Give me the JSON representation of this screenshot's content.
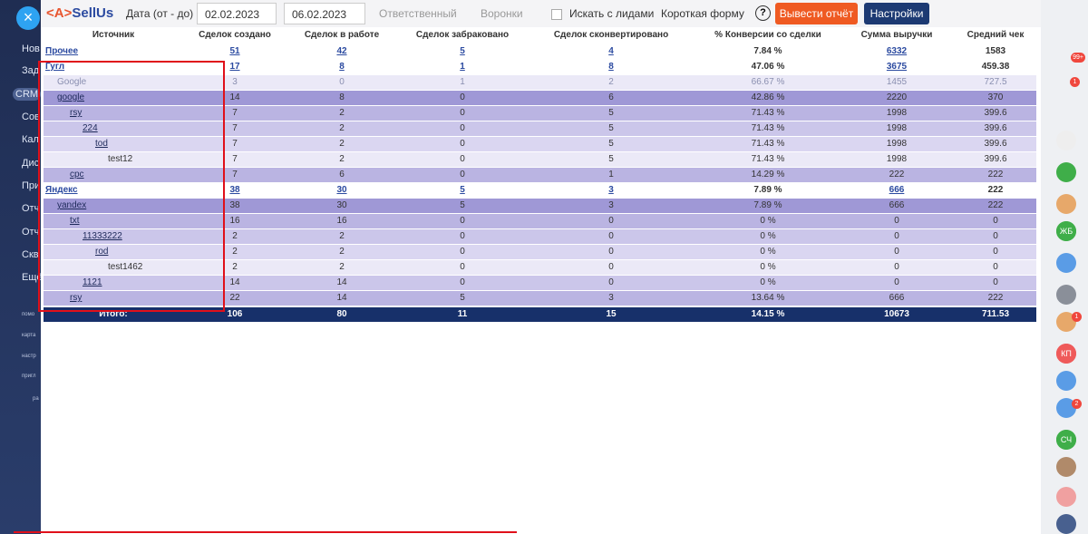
{
  "sidebar": {
    "close": "×",
    "items": [
      "Нов",
      "Зад",
      "CRM",
      "Сов",
      "Кал",
      "Дис",
      "При",
      "Отч",
      "Отч",
      "Скв",
      "Ещё"
    ],
    "small_items": [
      "помо",
      "карта",
      "настр",
      "пригл",
      "ра"
    ]
  },
  "toolbar": {
    "logo_mark": "<A>",
    "logo_text": "SellUs",
    "date_label": "Дата (от - до)",
    "date_from": "02.02.2023",
    "date_to": "06.02.2023",
    "responsible": "Ответственный",
    "funnels": "Воронки",
    "search_leads": "Искать с лидами",
    "form": "Короткая форму",
    "help": "?",
    "report_button": "Вывести отчёт",
    "settings_button": "Настройки"
  },
  "right_panel": {
    "badges": [
      "99+",
      "1",
      "1",
      "2"
    ],
    "icons": [
      "ЖБ",
      "КП",
      "СЧ"
    ]
  },
  "table": {
    "columns": [
      "Источник",
      "Сделок создано",
      "Сделок в работе",
      "Сделок забраковано",
      "Сделок сконвертировано",
      "% Конверсии со сделки",
      "Сумма выручки",
      "Средний чек"
    ],
    "rows": [
      [
        "Прочее",
        "51",
        "42",
        "5",
        "4",
        "7.84 %",
        "6332",
        "1583"
      ],
      [
        "Гугл",
        "17",
        "8",
        "1",
        "8",
        "47.06 %",
        "3675",
        "459.38"
      ],
      [
        "Google",
        "3",
        "0",
        "1",
        "2",
        "66.67 %",
        "1455",
        "727.5"
      ],
      [
        "google",
        "14",
        "8",
        "0",
        "6",
        "42.86 %",
        "2220",
        "370"
      ],
      [
        "rsy",
        "7",
        "2",
        "0",
        "5",
        "71.43 %",
        "1998",
        "399.6"
      ],
      [
        "224",
        "7",
        "2",
        "0",
        "5",
        "71.43 %",
        "1998",
        "399.6"
      ],
      [
        "tod",
        "7",
        "2",
        "0",
        "5",
        "71.43 %",
        "1998",
        "399.6"
      ],
      [
        "test12",
        "7",
        "2",
        "0",
        "5",
        "71.43 %",
        "1998",
        "399.6"
      ],
      [
        "cpc",
        "7",
        "6",
        "0",
        "1",
        "14.29 %",
        "222",
        "222"
      ],
      [
        "Яндекс",
        "38",
        "30",
        "5",
        "3",
        "7.89 %",
        "666",
        "222"
      ],
      [
        "yandex",
        "38",
        "30",
        "5",
        "3",
        "7.89 %",
        "666",
        "222"
      ],
      [
        "txt",
        "16",
        "16",
        "0",
        "0",
        "0 %",
        "0",
        "0"
      ],
      [
        "11333222",
        "2",
        "2",
        "0",
        "0",
        "0 %",
        "0",
        "0"
      ],
      [
        "rod",
        "2",
        "2",
        "0",
        "0",
        "0 %",
        "0",
        "0"
      ],
      [
        "test1462",
        "2",
        "2",
        "0",
        "0",
        "0 %",
        "0",
        "0"
      ],
      [
        "1121",
        "14",
        "14",
        "0",
        "0",
        "0 %",
        "0",
        "0"
      ],
      [
        "rsy",
        "22",
        "14",
        "5",
        "3",
        "13.64 %",
        "666",
        "222"
      ]
    ],
    "total": [
      "Итого:",
      "106",
      "80",
      "11",
      "15",
      "14.15 %",
      "10673",
      "711.53"
    ]
  }
}
